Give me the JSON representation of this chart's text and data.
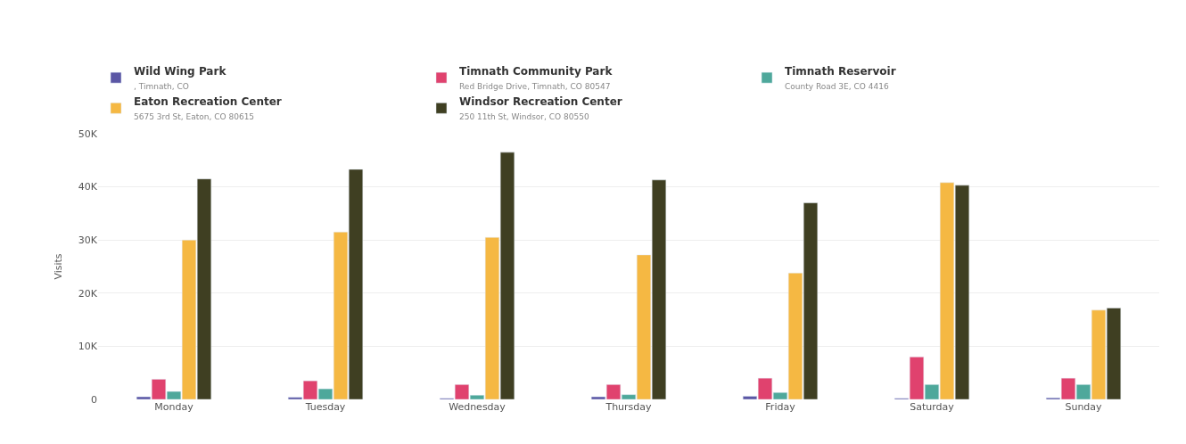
{
  "chart_data": {
    "type": "bar",
    "ylabel": "Visits",
    "categories": [
      "Monday",
      "Tuesday",
      "Wednesday",
      "Thursday",
      "Friday",
      "Saturday",
      "Sunday"
    ],
    "series": [
      {
        "name": "Wild Wing Park\n, Timnath, CO",
        "color": "#5b57a5",
        "values": [
          500,
          400,
          200,
          500,
          600,
          200,
          300
        ]
      },
      {
        "name": "Timnath Community Park\nRed Bridge Drive, Timnath, CO 80547",
        "color": "#e0426e",
        "values": [
          3800,
          3500,
          2800,
          2800,
          4000,
          8000,
          4000
        ]
      },
      {
        "name": "Timnath Reservoir\nCounty Road 3E, CO 4416",
        "color": "#4ea89b",
        "values": [
          1500,
          2000,
          800,
          900,
          1300,
          2800,
          2800
        ]
      },
      {
        "name": "Eaton Recreation Center\n5675 3rd St, Eaton, CO 80615",
        "color": "#f5b843",
        "values": [
          30000,
          31500,
          30500,
          27200,
          23800,
          40800,
          16800
        ]
      },
      {
        "name": "Windsor Recreation Center\n250 11th St, Windsor, CO 80550",
        "color": "#3f3f22",
        "values": [
          41500,
          43300,
          46500,
          41300,
          37000,
          40300,
          17200
        ]
      }
    ],
    "ylim": [
      0,
      50000
    ],
    "yticks": [
      {
        "value": 0,
        "label": "0"
      },
      {
        "value": 10000,
        "label": "10K"
      },
      {
        "value": 20000,
        "label": "20K"
      },
      {
        "value": 30000,
        "label": "30K"
      },
      {
        "value": 40000,
        "label": "40K"
      },
      {
        "value": 50000,
        "label": "50K"
      }
    ],
    "grid": "y",
    "legend": "top left"
  }
}
